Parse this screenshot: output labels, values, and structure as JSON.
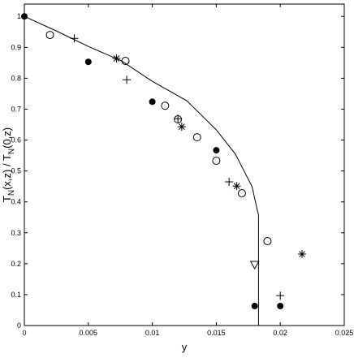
{
  "chart_data": {
    "type": "scatter",
    "xlabel": "y",
    "ylabel": [
      "T",
      "N",
      "(x,z) / T",
      "N",
      "(0,z)"
    ],
    "xlim": [
      0,
      0.025
    ],
    "xticks": [
      0,
      0.005,
      0.01,
      0.015,
      0.02,
      0.025
    ],
    "ylim": [
      0,
      1.04
    ],
    "yticks": [
      0,
      0.1,
      0.2,
      0.3,
      0.4,
      0.5,
      0.6,
      0.7,
      0.8,
      0.9,
      1
    ],
    "series": [
      {
        "marker": "line",
        "color": "#000000",
        "x": [
          0,
          0.0025,
          0.005,
          0.0076,
          0.01,
          0.0127,
          0.015,
          0.0165,
          0.0178,
          0.01815,
          0.0183,
          0.0183
        ],
        "values": [
          1.0,
          0.953,
          0.903,
          0.856,
          0.79,
          0.727,
          0.633,
          0.554,
          0.449,
          0.383,
          0.357,
          0
        ]
      },
      {
        "marker": "filled-circle",
        "color": "#000000",
        "x": [
          0,
          0.005,
          0.01,
          0.015,
          0.018,
          0.02
        ],
        "values": [
          1.0,
          0.853,
          0.724,
          0.567,
          0.063,
          0.063
        ]
      },
      {
        "marker": "open-circle",
        "color": "#000000",
        "x": [
          0.002,
          0.0079,
          0.011,
          0.012,
          0.0135,
          0.015,
          0.017,
          0.019
        ],
        "values": [
          0.94,
          0.856,
          0.711,
          0.667,
          0.609,
          0.533,
          0.428,
          0.273
        ]
      },
      {
        "marker": "plus",
        "color": "#000000",
        "x": [
          0.0039,
          0.008,
          0.012,
          0.016,
          0.02
        ],
        "values": [
          0.929,
          0.795,
          0.669,
          0.465,
          0.097
        ]
      },
      {
        "marker": "asterisk",
        "color": "#000000",
        "x": [
          0.0072,
          0.0123,
          0.0166,
          0.0217
        ],
        "values": [
          0.864,
          0.643,
          0.451,
          0.231
        ]
      },
      {
        "marker": "triangle-down",
        "color": "#000000",
        "x": [
          0.018
        ],
        "values": [
          0.197
        ]
      }
    ]
  }
}
